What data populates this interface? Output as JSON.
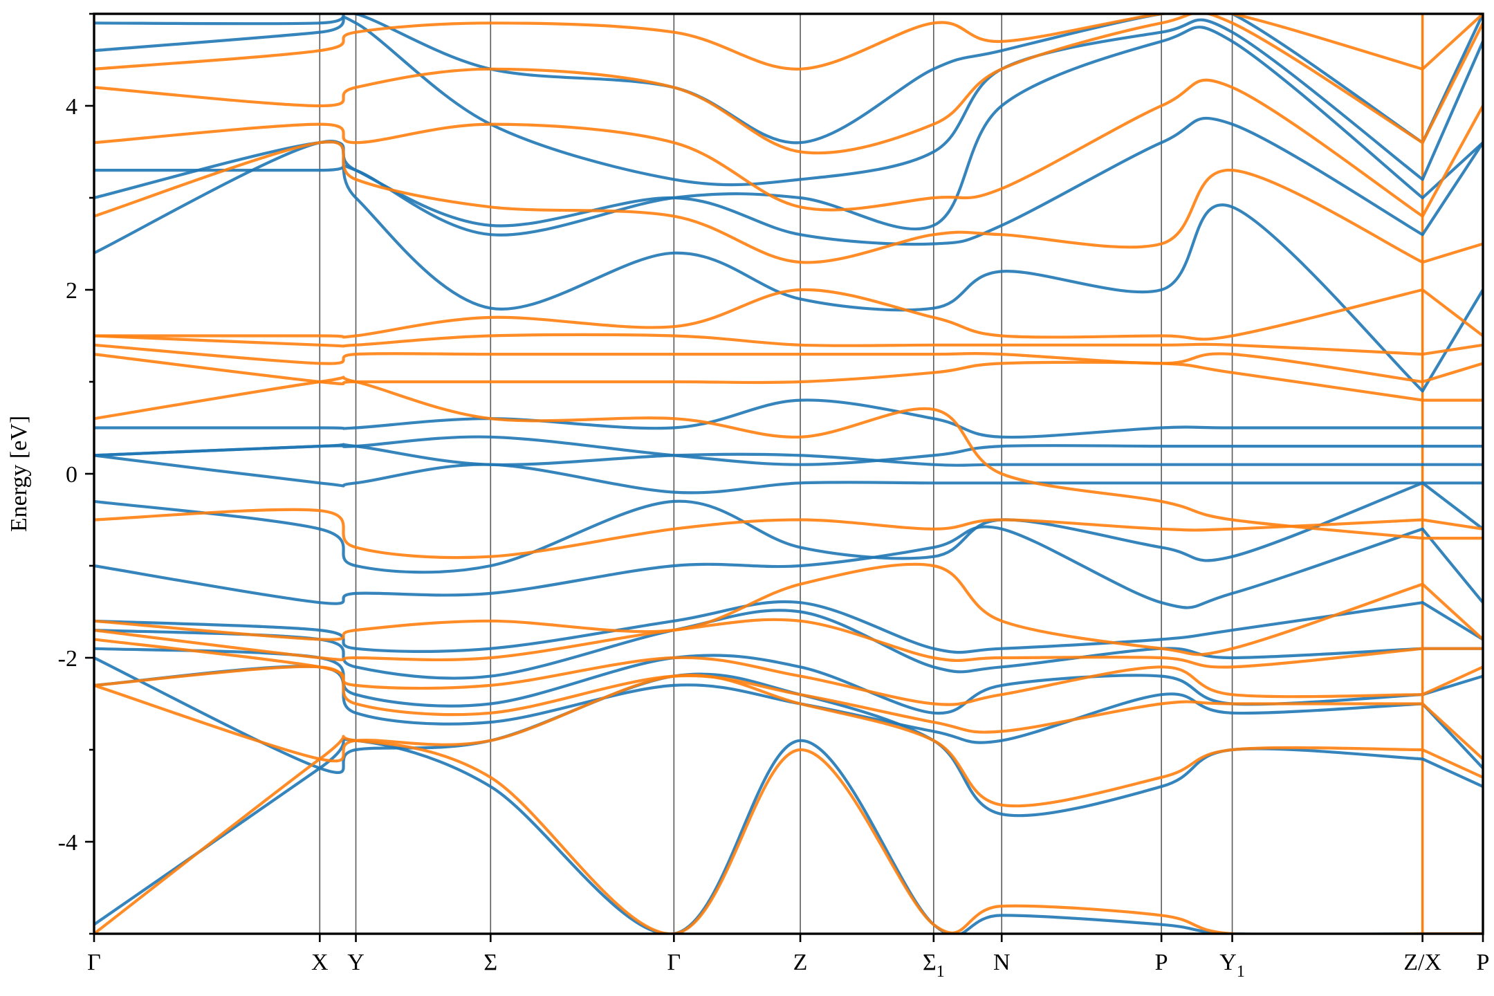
{
  "chart_data": {
    "type": "line",
    "title": "",
    "xlabel": "",
    "ylabel": "Energy [eV]",
    "ylim": [
      -5,
      5
    ],
    "y_ticks": [
      {
        "value": 4,
        "label": "4"
      },
      {
        "value": 2,
        "label": "2"
      },
      {
        "value": 0,
        "label": "0"
      },
      {
        "value": -2,
        "label": "-2"
      },
      {
        "value": -4,
        "label": "-4"
      }
    ],
    "y_minor_ticks": [
      -5,
      -3,
      -1,
      1,
      3,
      5
    ],
    "grid": false,
    "legend": "none",
    "kpath_segments": [
      {
        "points": [
          "Γ",
          "X",
          "Y",
          "Σ",
          "Γ",
          "Z",
          "Σ1",
          "N",
          "P",
          "Y1",
          "Z"
        ],
        "k": [
          0,
          0.1625,
          0.1885,
          0.2855,
          0.4175,
          0.5085,
          0.6045,
          0.6535,
          0.7685,
          0.8195,
          0.9565
        ]
      },
      {
        "points": [
          "X",
          "P"
        ],
        "k": [
          0.9565,
          1.0
        ]
      }
    ],
    "x_tick_labels": [
      {
        "k": 0.0,
        "text": "Γ",
        "sub": ""
      },
      {
        "k": 0.1625,
        "text": "X",
        "sub": ""
      },
      {
        "k": 0.1885,
        "text": "Y",
        "sub": ""
      },
      {
        "k": 0.2855,
        "text": "Σ",
        "sub": ""
      },
      {
        "k": 0.4175,
        "text": "Γ",
        "sub": ""
      },
      {
        "k": 0.5085,
        "text": "Z",
        "sub": ""
      },
      {
        "k": 0.6045,
        "text": "Σ",
        "sub": "1"
      },
      {
        "k": 0.6535,
        "text": "N",
        "sub": ""
      },
      {
        "k": 0.7685,
        "text": "P",
        "sub": ""
      },
      {
        "k": 0.8195,
        "text": "Y",
        "sub": "1"
      },
      {
        "k": 0.9565,
        "text": "Z/X",
        "sub": ""
      },
      {
        "k": 1.0,
        "text": "P",
        "sub": ""
      }
    ],
    "series_colors": [
      "#1f77b4",
      "#ff7f0e"
    ],
    "series": [
      {
        "color": "#1f77b4",
        "bands": [
          {
            "vals": [
              -4.9,
              -3.2,
              -2.9,
              -3.4,
              -5.0,
              -2.9,
              -4.9,
              -4.8,
              -4.9,
              -5.0,
              -5.0
            ],
            "end": [
              -5.0,
              -5.0
            ]
          },
          {
            "vals": [
              -2.0,
              -3.2,
              -3.0,
              -2.9,
              -2.2,
              -2.4,
              -2.9,
              -3.7,
              -3.4,
              -3.0,
              -3.1
            ],
            "end": [
              -3.1,
              -3.4
            ]
          },
          {
            "vals": [
              -2.3,
              -2.1,
              -2.6,
              -2.7,
              -2.3,
              -2.5,
              -2.8,
              -2.9,
              -2.4,
              -2.6,
              -2.5
            ],
            "end": [
              -2.5,
              -3.2
            ]
          },
          {
            "vals": [
              -1.9,
              -2.0,
              -2.4,
              -2.5,
              -2.0,
              -2.1,
              -2.6,
              -2.3,
              -2.2,
              -2.5,
              -2.4
            ],
            "end": [
              -2.4,
              -2.2
            ]
          },
          {
            "vals": [
              -1.7,
              -1.8,
              -2.1,
              -2.2,
              -1.7,
              -1.5,
              -2.1,
              -2.1,
              -1.9,
              -2.0,
              -1.9
            ],
            "end": [
              -1.9,
              -1.9
            ]
          },
          {
            "vals": [
              -1.6,
              -1.7,
              -1.9,
              -1.9,
              -1.6,
              -1.4,
              -1.9,
              -1.9,
              -1.8,
              -1.7,
              -1.4
            ],
            "end": [
              -1.4,
              -1.8
            ]
          },
          {
            "vals": [
              -1.0,
              -1.4,
              -1.3,
              -1.3,
              -1.0,
              -1.0,
              -0.8,
              -0.6,
              -1.4,
              -1.3,
              -0.6
            ],
            "end": [
              -0.6,
              -1.4
            ]
          },
          {
            "vals": [
              -0.3,
              -0.6,
              -1.0,
              -1.0,
              -0.3,
              -0.8,
              -0.9,
              -0.5,
              -0.8,
              -0.9,
              -0.1
            ],
            "end": [
              -0.1,
              -0.6
            ]
          },
          {
            "vals": [
              0.2,
              -0.1,
              -0.1,
              0.1,
              -0.2,
              -0.1,
              -0.1,
              -0.1,
              -0.1,
              -0.1,
              -0.1
            ],
            "end": [
              -0.1,
              -0.1
            ]
          },
          {
            "vals": [
              0.2,
              0.3,
              0.3,
              0.1,
              0.2,
              0.2,
              0.1,
              0.1,
              0.1,
              0.1,
              0.1
            ],
            "end": [
              0.1,
              0.1
            ]
          },
          {
            "vals": [
              0.2,
              0.3,
              0.3,
              0.4,
              0.2,
              0.1,
              0.2,
              0.3,
              0.3,
              0.3,
              0.3
            ],
            "end": [
              0.3,
              0.3
            ]
          },
          {
            "vals": [
              0.5,
              0.5,
              0.5,
              0.6,
              0.5,
              0.8,
              0.6,
              0.4,
              0.5,
              0.5,
              0.5
            ],
            "end": [
              0.5,
              0.5
            ]
          },
          {
            "vals": [
              2.4,
              3.6,
              3.0,
              1.8,
              2.4,
              1.9,
              1.8,
              2.2,
              2.0,
              2.9,
              0.9
            ],
            "end": [
              0.9,
              2.0
            ]
          },
          {
            "vals": [
              3.0,
              3.6,
              3.3,
              2.7,
              3.0,
              2.6,
              2.5,
              2.7,
              3.6,
              3.8,
              2.6
            ],
            "end": [
              2.6,
              3.6
            ]
          },
          {
            "vals": [
              3.3,
              3.3,
              3.3,
              2.6,
              3.0,
              3.0,
              2.7,
              4.0,
              4.7,
              4.7,
              3.0
            ],
            "end": [
              3.0,
              3.6
            ]
          },
          {
            "vals": [
              4.6,
              4.8,
              4.9,
              3.8,
              3.2,
              3.2,
              3.5,
              4.4,
              4.8,
              4.8,
              3.2
            ],
            "end": [
              3.2,
              4.7
            ]
          },
          {
            "vals": [
              4.9,
              4.9,
              5.0,
              4.4,
              4.2,
              3.6,
              4.4,
              4.6,
              5.0,
              5.0,
              3.6
            ],
            "end": [
              3.6,
              5.0
            ]
          }
        ]
      },
      {
        "color": "#ff7f0e",
        "bands": [
          {
            "vals": [
              -5.0,
              -3.1,
              -2.9,
              -3.3,
              -5.0,
              -3.0,
              -4.9,
              -4.7,
              -4.8,
              -5.0,
              -5.0
            ],
            "end": [
              -5.0,
              -5.0
            ]
          },
          {
            "vals": [
              -2.3,
              -3.1,
              -2.9,
              -2.9,
              -2.2,
              -2.5,
              -2.9,
              -3.6,
              -3.3,
              -3.0,
              -3.0
            ],
            "end": [
              -3.0,
              -3.3
            ]
          },
          {
            "vals": [
              -2.3,
              -2.1,
              -2.5,
              -2.6,
              -2.2,
              -2.4,
              -2.7,
              -2.8,
              -2.5,
              -2.5,
              -2.5
            ],
            "end": [
              -2.5,
              -3.1
            ]
          },
          {
            "vals": [
              -1.8,
              -2.1,
              -2.3,
              -2.3,
              -2.0,
              -2.2,
              -2.5,
              -2.4,
              -2.1,
              -2.4,
              -2.4
            ],
            "end": [
              -2.4,
              -2.1
            ]
          },
          {
            "vals": [
              -1.7,
              -2.0,
              -2.0,
              -2.0,
              -1.7,
              -1.6,
              -2.0,
              -2.0,
              -2.0,
              -2.1,
              -1.9
            ],
            "end": [
              -1.9,
              -1.9
            ]
          },
          {
            "vals": [
              -1.6,
              -1.8,
              -1.7,
              -1.6,
              -1.7,
              -1.2,
              -1.0,
              -1.6,
              -1.9,
              -1.9,
              -1.2
            ],
            "end": [
              -1.2,
              -1.8
            ]
          },
          {
            "vals": [
              -0.5,
              -0.4,
              -0.8,
              -0.9,
              -0.6,
              -0.5,
              -0.6,
              -0.5,
              -0.6,
              -0.6,
              -0.5
            ],
            "end": [
              -0.5,
              -0.6
            ]
          },
          {
            "vals": [
              0.6,
              1.0,
              1.0,
              0.6,
              0.6,
              0.4,
              0.7,
              0.0,
              -0.3,
              -0.5,
              -0.7
            ],
            "end": [
              -0.7,
              -0.7
            ]
          },
          {
            "vals": [
              1.3,
              1.0,
              1.0,
              1.0,
              1.0,
              1.0,
              1.1,
              1.2,
              1.2,
              1.1,
              0.8
            ],
            "end": [
              0.8,
              0.8
            ]
          },
          {
            "vals": [
              1.4,
              1.2,
              1.3,
              1.3,
              1.3,
              1.3,
              1.3,
              1.3,
              1.2,
              1.3,
              1.0
            ],
            "end": [
              1.0,
              1.2
            ]
          },
          {
            "vals": [
              1.5,
              1.4,
              1.4,
              1.5,
              1.5,
              1.4,
              1.4,
              1.4,
              1.4,
              1.4,
              1.3
            ],
            "end": [
              1.3,
              1.4
            ]
          },
          {
            "vals": [
              1.5,
              1.5,
              1.5,
              1.7,
              1.6,
              2.0,
              1.7,
              1.5,
              1.5,
              1.5,
              2.0
            ],
            "end": [
              2.0,
              1.5
            ]
          },
          {
            "vals": [
              2.8,
              3.6,
              3.2,
              2.9,
              2.8,
              2.3,
              2.6,
              2.6,
              2.5,
              3.3,
              2.3
            ],
            "end": [
              2.3,
              2.5
            ]
          },
          {
            "vals": [
              3.6,
              3.8,
              3.6,
              3.8,
              3.6,
              2.9,
              3.0,
              3.1,
              4.0,
              4.2,
              2.8
            ],
            "end": [
              2.8,
              4.0
            ]
          },
          {
            "vals": [
              4.2,
              4.0,
              4.2,
              4.4,
              4.2,
              3.5,
              3.8,
              4.4,
              4.9,
              4.9,
              3.6
            ],
            "end": [
              3.6,
              4.9
            ]
          },
          {
            "vals": [
              4.4,
              4.6,
              4.8,
              4.9,
              4.8,
              4.4,
              4.9,
              4.7,
              5.0,
              5.0,
              4.4
            ],
            "end": [
              4.4,
              5.0
            ]
          }
        ]
      }
    ]
  }
}
